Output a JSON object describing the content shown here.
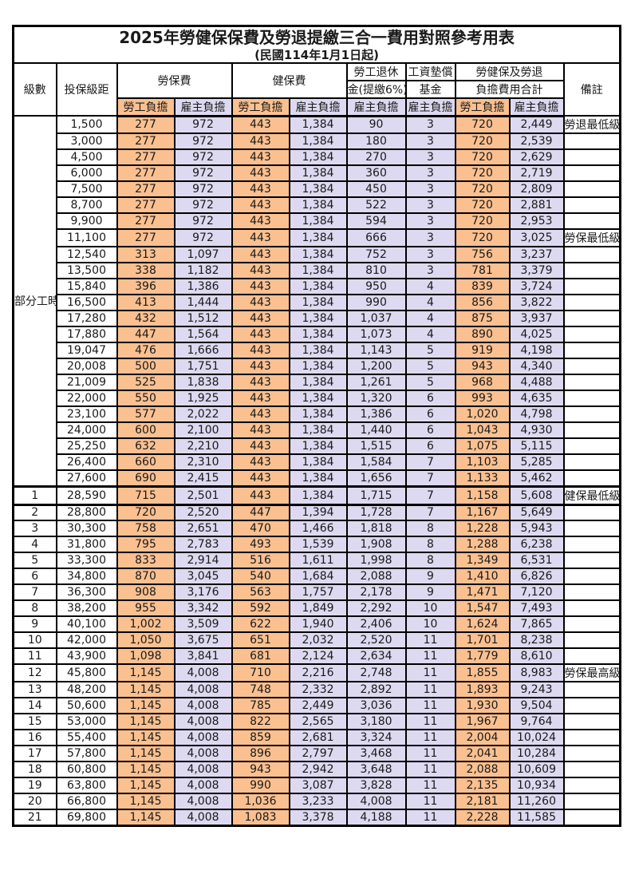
{
  "title": "2025年勞健保保費及勞退提繳三合一費用對照參考用表",
  "subtitle": "(民國114年1月1日起)",
  "columns": {
    "level": "級數",
    "bracket": "投保級距",
    "labor_insurance": "勞保費",
    "health_insurance": "健保費",
    "pension_line1": "勞工退休",
    "pension_line2": "金(提繳6%)",
    "wage_fund_line1": "工資墊償",
    "wage_fund_line2": "基金",
    "total_line1": "勞健保及勞退",
    "total_line2": "負擔費用合計",
    "note": "備註",
    "employee_share": "勞工負擔",
    "employer_share": "雇主負擔"
  },
  "group_label": "部分工時",
  "colors": {
    "employee_bg": "#FAC090",
    "employer_bg": "#DCD9F0",
    "highlight_text": "#F75A5E",
    "border": "#000000"
  },
  "rows": [
    {
      "level": "",
      "bracket": "1,500",
      "values": [
        "277",
        "972",
        "443",
        "1,384",
        "90",
        "3",
        "720",
        "2,449"
      ],
      "note": "勞退最低級距",
      "red": true,
      "bold": false,
      "thick": false
    },
    {
      "level": "",
      "bracket": "3,000",
      "values": [
        "277",
        "972",
        "443",
        "1,384",
        "180",
        "3",
        "720",
        "2,539"
      ],
      "note": "",
      "red": false,
      "bold": false,
      "thick": false
    },
    {
      "level": "",
      "bracket": "4,500",
      "values": [
        "277",
        "972",
        "443",
        "1,384",
        "270",
        "3",
        "720",
        "2,629"
      ],
      "note": "",
      "red": false,
      "bold": false,
      "thick": false
    },
    {
      "level": "",
      "bracket": "6,000",
      "values": [
        "277",
        "972",
        "443",
        "1,384",
        "360",
        "3",
        "720",
        "2,719"
      ],
      "note": "",
      "red": false,
      "bold": false,
      "thick": false
    },
    {
      "level": "",
      "bracket": "7,500",
      "values": [
        "277",
        "972",
        "443",
        "1,384",
        "450",
        "3",
        "720",
        "2,809"
      ],
      "note": "",
      "red": false,
      "bold": false,
      "thick": false
    },
    {
      "level": "",
      "bracket": "8,700",
      "values": [
        "277",
        "972",
        "443",
        "1,384",
        "522",
        "3",
        "720",
        "2,881"
      ],
      "note": "",
      "red": false,
      "bold": false,
      "thick": false
    },
    {
      "level": "",
      "bracket": "9,900",
      "values": [
        "277",
        "972",
        "443",
        "1,384",
        "594",
        "3",
        "720",
        "2,953"
      ],
      "note": "",
      "red": false,
      "bold": false,
      "thick": false
    },
    {
      "level": "",
      "bracket": "11,100",
      "values": [
        "277",
        "972",
        "443",
        "1,384",
        "666",
        "3",
        "720",
        "3,025"
      ],
      "note": "勞保最低級距",
      "red": true,
      "bold": false,
      "thick": false
    },
    {
      "level": "",
      "bracket": "12,540",
      "values": [
        "313",
        "1,097",
        "443",
        "1,384",
        "752",
        "3",
        "756",
        "3,237"
      ],
      "note": "",
      "red": false,
      "bold": false,
      "thick": false
    },
    {
      "level": "",
      "bracket": "13,500",
      "values": [
        "338",
        "1,182",
        "443",
        "1,384",
        "810",
        "3",
        "781",
        "3,379"
      ],
      "note": "",
      "red": false,
      "bold": false,
      "thick": false
    },
    {
      "level": "",
      "bracket": "15,840",
      "values": [
        "396",
        "1,386",
        "443",
        "1,384",
        "950",
        "4",
        "839",
        "3,724"
      ],
      "note": "",
      "red": false,
      "bold": false,
      "thick": false
    },
    {
      "level": "",
      "bracket": "16,500",
      "values": [
        "413",
        "1,444",
        "443",
        "1,384",
        "990",
        "4",
        "856",
        "3,822"
      ],
      "note": "",
      "red": false,
      "bold": false,
      "thick": false
    },
    {
      "level": "",
      "bracket": "17,280",
      "values": [
        "432",
        "1,512",
        "443",
        "1,384",
        "1,037",
        "4",
        "875",
        "3,937"
      ],
      "note": "",
      "red": false,
      "bold": false,
      "thick": false
    },
    {
      "level": "",
      "bracket": "17,880",
      "values": [
        "447",
        "1,564",
        "443",
        "1,384",
        "1,073",
        "4",
        "890",
        "4,025"
      ],
      "note": "",
      "red": false,
      "bold": false,
      "thick": false
    },
    {
      "level": "",
      "bracket": "19,047",
      "values": [
        "476",
        "1,666",
        "443",
        "1,384",
        "1,143",
        "5",
        "919",
        "4,198"
      ],
      "note": "",
      "red": false,
      "bold": false,
      "thick": false
    },
    {
      "level": "",
      "bracket": "20,008",
      "values": [
        "500",
        "1,751",
        "443",
        "1,384",
        "1,200",
        "5",
        "943",
        "4,340"
      ],
      "note": "",
      "red": false,
      "bold": false,
      "thick": false
    },
    {
      "level": "",
      "bracket": "21,009",
      "values": [
        "525",
        "1,838",
        "443",
        "1,384",
        "1,261",
        "5",
        "968",
        "4,488"
      ],
      "note": "",
      "red": false,
      "bold": false,
      "thick": false
    },
    {
      "level": "",
      "bracket": "22,000",
      "values": [
        "550",
        "1,925",
        "443",
        "1,384",
        "1,320",
        "6",
        "993",
        "4,635"
      ],
      "note": "",
      "red": false,
      "bold": false,
      "thick": false
    },
    {
      "level": "",
      "bracket": "23,100",
      "values": [
        "577",
        "2,022",
        "443",
        "1,384",
        "1,386",
        "6",
        "1,020",
        "4,798"
      ],
      "note": "",
      "red": false,
      "bold": false,
      "thick": false
    },
    {
      "level": "",
      "bracket": "24,000",
      "values": [
        "600",
        "2,100",
        "443",
        "1,384",
        "1,440",
        "6",
        "1,043",
        "4,930"
      ],
      "note": "",
      "red": false,
      "bold": false,
      "thick": false
    },
    {
      "level": "",
      "bracket": "25,250",
      "values": [
        "632",
        "2,210",
        "443",
        "1,384",
        "1,515",
        "6",
        "1,075",
        "5,115"
      ],
      "note": "",
      "red": false,
      "bold": false,
      "thick": false
    },
    {
      "level": "",
      "bracket": "26,400",
      "values": [
        "660",
        "2,310",
        "443",
        "1,384",
        "1,584",
        "7",
        "1,103",
        "5,285"
      ],
      "note": "",
      "red": false,
      "bold": false,
      "thick": false
    },
    {
      "level": "",
      "bracket": "27,600",
      "values": [
        "690",
        "2,415",
        "443",
        "1,384",
        "1,656",
        "7",
        "1,133",
        "5,462"
      ],
      "note": "",
      "red": false,
      "bold": false,
      "thick": false
    },
    {
      "level": "1",
      "bracket": "28,590",
      "values": [
        "715",
        "2,501",
        "443",
        "1,384",
        "1,715",
        "7",
        "1,158",
        "5,608"
      ],
      "note": "健保最低級距",
      "red": true,
      "bold": true,
      "thick": true
    },
    {
      "level": "2",
      "bracket": "28,800",
      "values": [
        "720",
        "2,520",
        "447",
        "1,394",
        "1,728",
        "7",
        "1,167",
        "5,649"
      ],
      "note": "",
      "red": false,
      "bold": false,
      "thick": false
    },
    {
      "level": "3",
      "bracket": "30,300",
      "values": [
        "758",
        "2,651",
        "470",
        "1,466",
        "1,818",
        "8",
        "1,228",
        "5,943"
      ],
      "note": "",
      "red": false,
      "bold": false,
      "thick": false
    },
    {
      "level": "4",
      "bracket": "31,800",
      "values": [
        "795",
        "2,783",
        "493",
        "1,539",
        "1,908",
        "8",
        "1,288",
        "6,238"
      ],
      "note": "",
      "red": false,
      "bold": false,
      "thick": false
    },
    {
      "level": "5",
      "bracket": "33,300",
      "values": [
        "833",
        "2,914",
        "516",
        "1,611",
        "1,998",
        "8",
        "1,349",
        "6,531"
      ],
      "note": "",
      "red": false,
      "bold": false,
      "thick": false
    },
    {
      "level": "6",
      "bracket": "34,800",
      "values": [
        "870",
        "3,045",
        "540",
        "1,684",
        "2,088",
        "9",
        "1,410",
        "6,826"
      ],
      "note": "",
      "red": false,
      "bold": false,
      "thick": false
    },
    {
      "level": "7",
      "bracket": "36,300",
      "values": [
        "908",
        "3,176",
        "563",
        "1,757",
        "2,178",
        "9",
        "1,471",
        "7,120"
      ],
      "note": "",
      "red": false,
      "bold": false,
      "thick": false
    },
    {
      "level": "8",
      "bracket": "38,200",
      "values": [
        "955",
        "3,342",
        "592",
        "1,849",
        "2,292",
        "10",
        "1,547",
        "7,493"
      ],
      "note": "",
      "red": false,
      "bold": false,
      "thick": false
    },
    {
      "level": "9",
      "bracket": "40,100",
      "values": [
        "1,002",
        "3,509",
        "622",
        "1,940",
        "2,406",
        "10",
        "1,624",
        "7,865"
      ],
      "note": "",
      "red": false,
      "bold": false,
      "thick": false
    },
    {
      "level": "10",
      "bracket": "42,000",
      "values": [
        "1,050",
        "3,675",
        "651",
        "2,032",
        "2,520",
        "11",
        "1,701",
        "8,238"
      ],
      "note": "",
      "red": false,
      "bold": false,
      "thick": false
    },
    {
      "level": "11",
      "bracket": "43,900",
      "values": [
        "1,098",
        "3,841",
        "681",
        "2,124",
        "2,634",
        "11",
        "1,779",
        "8,610"
      ],
      "note": "",
      "red": false,
      "bold": false,
      "thick": false
    },
    {
      "level": "12",
      "bracket": "45,800",
      "values": [
        "1,145",
        "4,008",
        "710",
        "2,216",
        "2,748",
        "11",
        "1,855",
        "8,983"
      ],
      "note": "勞保最高級距",
      "red": true,
      "bold": true,
      "thick": false
    },
    {
      "level": "13",
      "bracket": "48,200",
      "values": [
        "1,145",
        "4,008",
        "748",
        "2,332",
        "2,892",
        "11",
        "1,893",
        "9,243"
      ],
      "note": "",
      "red": false,
      "bold": false,
      "thick": false
    },
    {
      "level": "14",
      "bracket": "50,600",
      "values": [
        "1,145",
        "4,008",
        "785",
        "2,449",
        "3,036",
        "11",
        "1,930",
        "9,504"
      ],
      "note": "",
      "red": false,
      "bold": false,
      "thick": false
    },
    {
      "level": "15",
      "bracket": "53,000",
      "values": [
        "1,145",
        "4,008",
        "822",
        "2,565",
        "3,180",
        "11",
        "1,967",
        "9,764"
      ],
      "note": "",
      "red": false,
      "bold": false,
      "thick": false
    },
    {
      "level": "16",
      "bracket": "55,400",
      "values": [
        "1,145",
        "4,008",
        "859",
        "2,681",
        "3,324",
        "11",
        "2,004",
        "10,024"
      ],
      "note": "",
      "red": false,
      "bold": false,
      "thick": false
    },
    {
      "level": "17",
      "bracket": "57,800",
      "values": [
        "1,145",
        "4,008",
        "896",
        "2,797",
        "3,468",
        "11",
        "2,041",
        "10,284"
      ],
      "note": "",
      "red": false,
      "bold": false,
      "thick": false
    },
    {
      "level": "18",
      "bracket": "60,800",
      "values": [
        "1,145",
        "4,008",
        "943",
        "2,942",
        "3,648",
        "11",
        "2,088",
        "10,609"
      ],
      "note": "",
      "red": false,
      "bold": false,
      "thick": false
    },
    {
      "level": "19",
      "bracket": "63,800",
      "values": [
        "1,145",
        "4,008",
        "990",
        "3,087",
        "3,828",
        "11",
        "2,135",
        "10,934"
      ],
      "note": "",
      "red": false,
      "bold": false,
      "thick": false
    },
    {
      "level": "20",
      "bracket": "66,800",
      "values": [
        "1,145",
        "4,008",
        "1,036",
        "3,233",
        "4,008",
        "11",
        "2,181",
        "11,260"
      ],
      "note": "",
      "red": false,
      "bold": false,
      "thick": false
    },
    {
      "level": "21",
      "bracket": "69,800",
      "values": [
        "1,145",
        "4,008",
        "1,083",
        "3,378",
        "4,188",
        "11",
        "2,228",
        "11,585"
      ],
      "note": "",
      "red": false,
      "bold": false,
      "thick": false
    }
  ]
}
